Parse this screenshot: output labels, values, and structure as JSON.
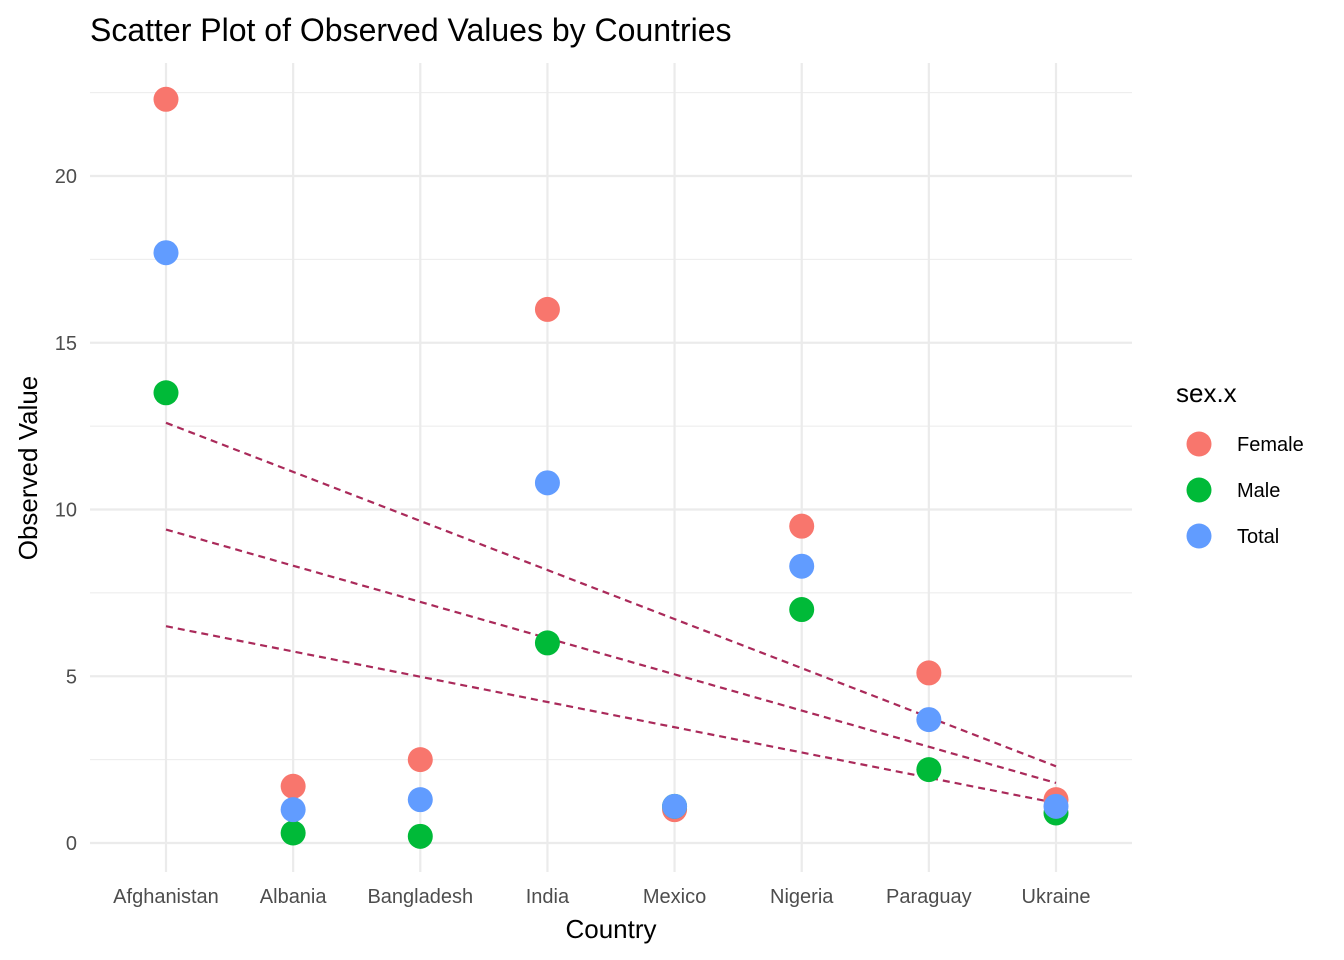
{
  "chart_data": {
    "type": "scatter",
    "title": "Scatter Plot of Observed Values by Countries",
    "xlabel": "Country",
    "ylabel": "Observed Value",
    "categories": [
      "Afghanistan",
      "Albania",
      "Bangladesh",
      "India",
      "Mexico",
      "Nigeria",
      "Paraguay",
      "Ukraine"
    ],
    "ylim": [
      -2.1,
      23.2
    ],
    "y_ticks": [
      0,
      5,
      10,
      15,
      20
    ],
    "grid": true,
    "legend": {
      "title": "sex.x",
      "position": "right"
    },
    "series": [
      {
        "name": "Female",
        "color": "#F8766D",
        "values": [
          22.3,
          1.7,
          2.5,
          16.0,
          1.0,
          9.5,
          5.1,
          1.3
        ]
      },
      {
        "name": "Male",
        "color": "#00BA38",
        "values": [
          13.5,
          0.3,
          0.2,
          6.0,
          1.1,
          7.0,
          2.2,
          0.9
        ]
      },
      {
        "name": "Total",
        "color": "#619CFF",
        "values": [
          17.7,
          1.0,
          1.3,
          10.8,
          1.1,
          8.3,
          3.7,
          1.1
        ]
      }
    ],
    "trend_lines": {
      "style": "dashed",
      "color": "#AA2A5A",
      "lines": [
        {
          "from": [
            "Afghanistan",
            12.6
          ],
          "to": [
            "Ukraine",
            2.3
          ]
        },
        {
          "from": [
            "Afghanistan",
            9.4
          ],
          "to": [
            "Ukraine",
            1.8
          ]
        },
        {
          "from": [
            "Afghanistan",
            6.5
          ],
          "to": [
            "Ukraine",
            1.2
          ]
        }
      ]
    }
  }
}
